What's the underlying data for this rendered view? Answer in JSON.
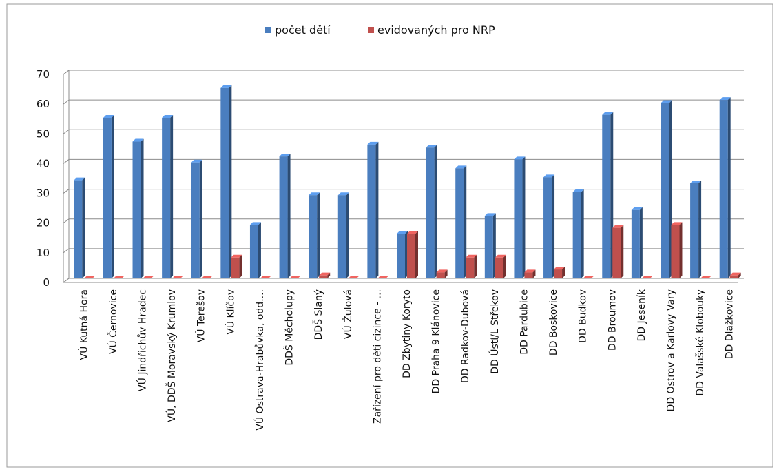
{
  "chart_data": {
    "type": "bar",
    "categories": [
      "VÚ Kutná Hora",
      "VÚ Černovice",
      "VÚ Jindřichův Hradec",
      "VÚ, DDŠ  Moravský Krumlov",
      "VÚ Terešov",
      "VÚ Klíčov",
      "VÚ Ostrava-Hrabůvka, odd....",
      "DDŠ Měcholupy",
      "DDŠ Slaný",
      "VÚ Žulová",
      "Zařízení pro děti cizince - ...",
      "DD Zbytiny Koryto",
      "DD Praha 9 Klánovice",
      "DD Radkov-Dubová",
      "DD Ústí/L Střekov",
      "DD Pardubice",
      "DD Boskovice",
      "DD Budkov",
      "DD Broumov",
      "DD Jeseník",
      "DD Ostrov a Karlovy Vary",
      "DD Valašské Klobouky",
      "DD Dlažkovice"
    ],
    "series": [
      {
        "name": "počet dětí",
        "color": "#4a7ebf",
        "values": [
          33,
          54,
          46,
          54,
          39,
          64,
          18,
          41,
          28,
          28,
          45,
          15,
          44,
          37,
          21,
          40,
          34,
          29,
          55,
          23,
          59,
          32,
          60
        ]
      },
      {
        "name": "evidovaných pro NRP",
        "color": "#c0504d",
        "values": [
          0,
          0,
          0,
          0,
          0,
          7,
          0,
          0,
          1,
          0,
          0,
          15,
          2,
          7,
          7,
          2,
          3,
          0,
          17,
          0,
          18,
          0,
          1
        ]
      }
    ],
    "ylim": [
      0,
      70
    ],
    "yticks": [
      0,
      10,
      20,
      30,
      40,
      50,
      60,
      70
    ],
    "grid": true,
    "legend_position": "top-center"
  }
}
